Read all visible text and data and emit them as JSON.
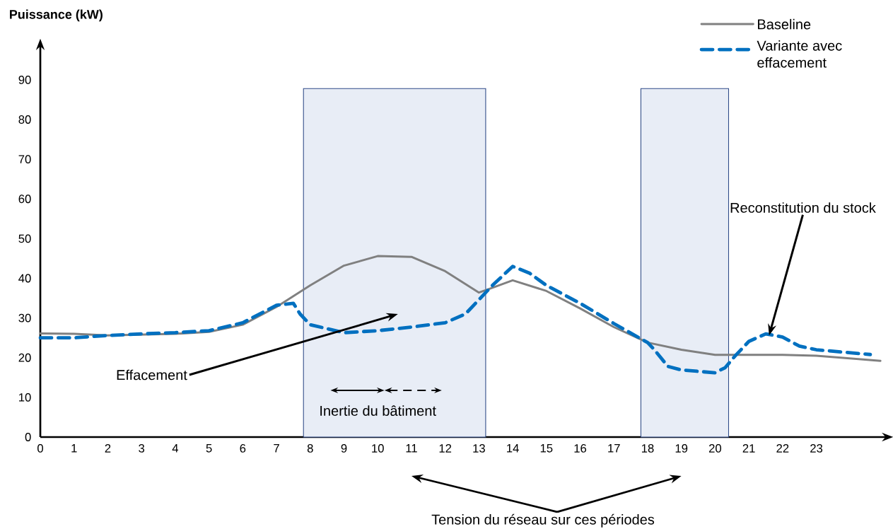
{
  "chart_data": {
    "type": "line",
    "ylabel": "Puissance (kW)",
    "xlim": [
      0,
      25
    ],
    "xticks": [
      0,
      1,
      2,
      3,
      4,
      5,
      6,
      7,
      8,
      9,
      10,
      11,
      12,
      13,
      14,
      15,
      16,
      17,
      18,
      19,
      20,
      21,
      22,
      23
    ],
    "ylim": [
      0,
      98
    ],
    "yticks": [
      0,
      10,
      20,
      30,
      40,
      50,
      60,
      70,
      80,
      90
    ],
    "series": [
      {
        "name": "Baseline",
        "color": "#808080",
        "line_style": "solid",
        "x": [
          0,
          1,
          2,
          3,
          4,
          5,
          6,
          7,
          8,
          9,
          10,
          11,
          12,
          13,
          13.3,
          14,
          15,
          16,
          17,
          18,
          19,
          20,
          21,
          22,
          23,
          24.9
        ],
        "values": [
          26.1,
          26,
          25.6,
          25.8,
          26,
          26.5,
          28.3,
          32.8,
          38.2,
          43.2,
          45.6,
          45.4,
          41.8,
          36.4,
          37.3,
          39.5,
          36.8,
          32.4,
          27.7,
          23.8,
          22,
          20.7,
          20.7,
          20.7,
          20.5,
          19.2
        ]
      },
      {
        "name": "Variante avec effacement",
        "color": "#0070c0",
        "line_style": "dashed",
        "x": [
          0,
          1,
          2,
          3,
          4,
          5,
          6,
          7,
          7.5,
          7.7,
          8,
          9,
          10,
          11,
          12,
          12.6,
          13,
          13.4,
          14,
          14.5,
          15,
          16,
          17,
          18,
          18.2,
          18.6,
          19,
          20,
          20.3,
          20.6,
          21,
          21.5,
          22,
          22.5,
          23,
          24.6
        ],
        "values": [
          25,
          25,
          25.6,
          26,
          26.3,
          26.8,
          28.8,
          33.2,
          33.7,
          31,
          28.3,
          26.3,
          26.8,
          27.7,
          28.8,
          31,
          34.6,
          38.2,
          43,
          41.3,
          38.2,
          33.7,
          28.6,
          23.8,
          22,
          17.8,
          16.9,
          16.2,
          17.5,
          20.5,
          24.1,
          26,
          25.2,
          22.9,
          22,
          20.8
        ]
      }
    ],
    "bands": [
      {
        "axis": "x",
        "from": 7.8,
        "to": 13.2,
        "color": "#e8edf6"
      },
      {
        "axis": "x",
        "from": 17.8,
        "to": 20.4,
        "color": "#e8edf6"
      }
    ],
    "annotations": [
      "Effacement",
      "Inertie du bâtiment",
      {
        "text": "Reconstitution du stock",
        "x": 21.6,
        "y": 25.6
      },
      "Tension du réseau sur ces périodes"
    ],
    "legend": "top right",
    "marker": "none",
    "grid": false
  }
}
